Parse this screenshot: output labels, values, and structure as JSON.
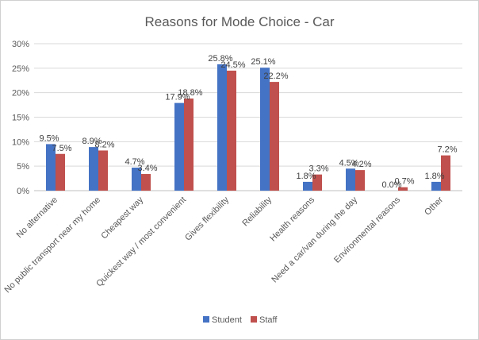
{
  "chart_data": {
    "type": "bar",
    "title": "Reasons for Mode Choice - Car",
    "xlabel": "",
    "ylabel": "",
    "ylim": [
      0,
      30
    ],
    "yticks": [
      "0%",
      "5%",
      "10%",
      "15%",
      "20%",
      "25%",
      "30%"
    ],
    "grid": true,
    "legend_position": "bottom",
    "categories": [
      "No alternative",
      "No public transport near my home",
      "Cheapest way",
      "Quickest way / most convenient",
      "Gives flexibility",
      "Reliability",
      "Health reasons",
      "Need a car/van during the day",
      "Environmental reasons",
      "Other"
    ],
    "series": [
      {
        "name": "Student",
        "color": "#4472C4",
        "values": [
          9.5,
          8.9,
          4.7,
          17.9,
          25.8,
          25.1,
          1.8,
          4.5,
          0.0,
          1.8
        ],
        "labels": [
          "9.5%",
          "8.9%",
          "4.7%",
          "17.9%",
          "25.8%",
          "25.1%",
          "1.8%",
          "4.5%",
          "0.0%",
          "1.8%"
        ]
      },
      {
        "name": "Staff",
        "color": "#C0504D",
        "values": [
          7.5,
          8.2,
          3.4,
          18.8,
          24.5,
          22.2,
          3.3,
          4.2,
          0.7,
          7.2
        ],
        "labels": [
          "7.5%",
          "8.2%",
          "3.4%",
          "18.8%",
          "24.5%",
          "22.2%",
          "3.3%",
          "4.2%",
          "0.7%",
          "7.2%"
        ]
      }
    ]
  }
}
